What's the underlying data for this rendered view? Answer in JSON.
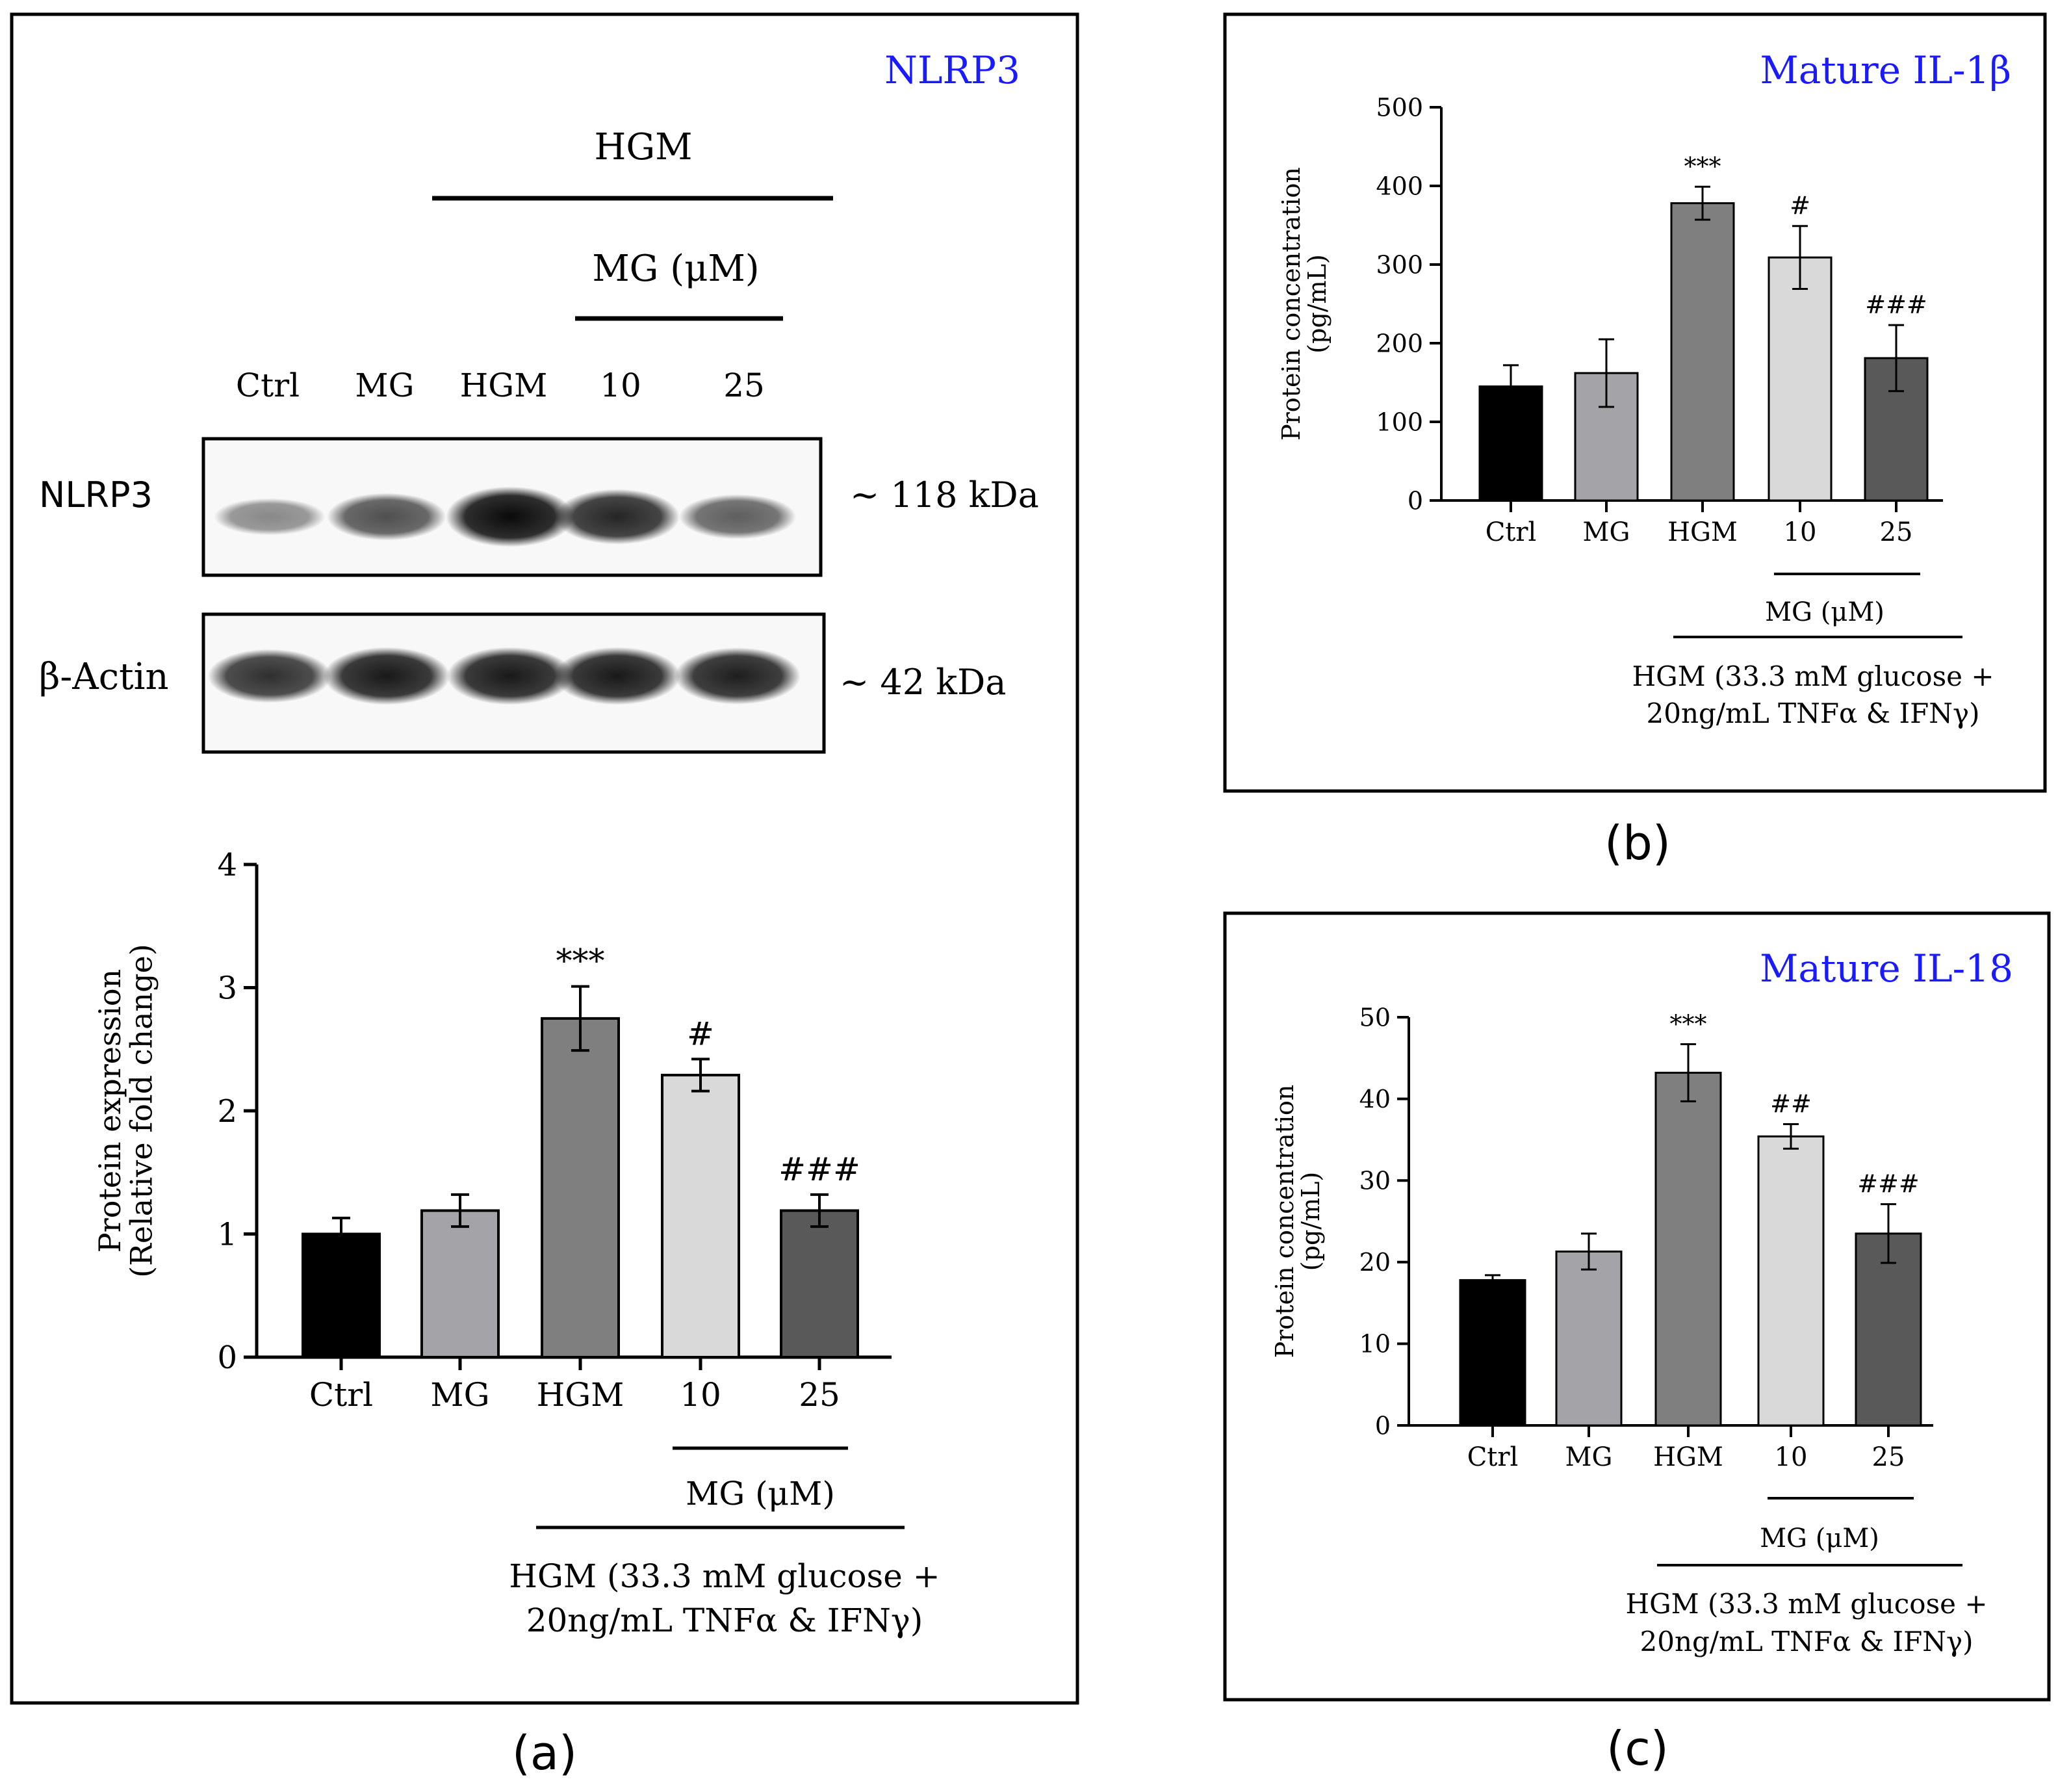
{
  "panels": {
    "a": {
      "caption": "(a)",
      "title": "NLRP3",
      "blot": {
        "hgm_header": "HGM",
        "mg_header": "MG (μM)",
        "lanes": [
          "Ctrl",
          "MG",
          "HGM",
          "10",
          "25"
        ],
        "rows": [
          {
            "label": "NLRP3",
            "size": "~ 118 kDa",
            "band_intensity": [
              0.35,
              0.62,
              0.95,
              0.82,
              0.55
            ]
          },
          {
            "label": "β-Actin",
            "size": "~ 42 kDa",
            "band_intensity": [
              0.78,
              0.88,
              0.88,
              0.88,
              0.86
            ]
          }
        ]
      },
      "treatment_mg": "MG (μM)",
      "treatment_hgm_line1": "HGM (33.3 mM glucose +",
      "treatment_hgm_line2": "20ng/mL TNFα & IFNγ)"
    },
    "b": {
      "caption": "(b)",
      "title": "Mature IL-1β",
      "treatment_mg": "MG (μM)",
      "treatment_hgm_line1": "HGM (33.3 mM glucose +",
      "treatment_hgm_line2": "20ng/mL TNFα & IFNγ)"
    },
    "c": {
      "caption": "(c)",
      "title": "Mature IL-18",
      "treatment_mg": "MG (μM)",
      "treatment_hgm_line1": "HGM (33.3 mM glucose +",
      "treatment_hgm_line2": "20ng/mL TNFα & IFNγ)"
    }
  },
  "colors": {
    "bar_fills": [
      "#000000",
      "#a4a3a8",
      "#7f7f7f",
      "#d9d9d9",
      "#595959"
    ],
    "title": "#1a1aff",
    "frame": "#000000"
  },
  "chart_data": [
    {
      "panel": "a",
      "type": "bar",
      "categories": [
        "Ctrl",
        "MG",
        "HGM",
        "10",
        "25"
      ],
      "values": [
        1.0,
        1.19,
        2.75,
        2.29,
        1.19
      ],
      "errors": [
        0.13,
        0.13,
        0.26,
        0.13,
        0.13
      ],
      "annotations": [
        "",
        "",
        "***",
        "#",
        "###"
      ],
      "ylabel": "Protein expression",
      "ylabel2": "(Relative fold change)",
      "ylim": [
        0,
        4
      ],
      "yticks": [
        0,
        1,
        2,
        3,
        4
      ],
      "grid": false
    },
    {
      "panel": "b",
      "type": "bar",
      "categories": [
        "Ctrl",
        "MG",
        "HGM",
        "10",
        "25"
      ],
      "values": [
        145,
        162,
        378,
        309,
        181
      ],
      "errors": [
        27,
        43,
        21,
        40,
        42
      ],
      "annotations": [
        "",
        "",
        "***",
        "#",
        "###"
      ],
      "ylabel": "Protein concentration",
      "ylabel2": "(pg/mL)",
      "ylim": [
        0,
        500
      ],
      "yticks": [
        0,
        100,
        200,
        300,
        400,
        500
      ],
      "grid": false
    },
    {
      "panel": "c",
      "type": "bar",
      "categories": [
        "Ctrl",
        "MG",
        "HGM",
        "10",
        "25"
      ],
      "values": [
        17.8,
        21.3,
        43.2,
        35.4,
        23.5
      ],
      "errors": [
        0.6,
        2.2,
        3.5,
        1.5,
        3.6
      ],
      "annotations": [
        "",
        "",
        "***",
        "##",
        "###"
      ],
      "ylabel": "Protein concentration",
      "ylabel2": "(pg/mL)",
      "ylim": [
        0,
        50
      ],
      "yticks": [
        0,
        10,
        20,
        30,
        40,
        50
      ],
      "grid": false
    }
  ]
}
